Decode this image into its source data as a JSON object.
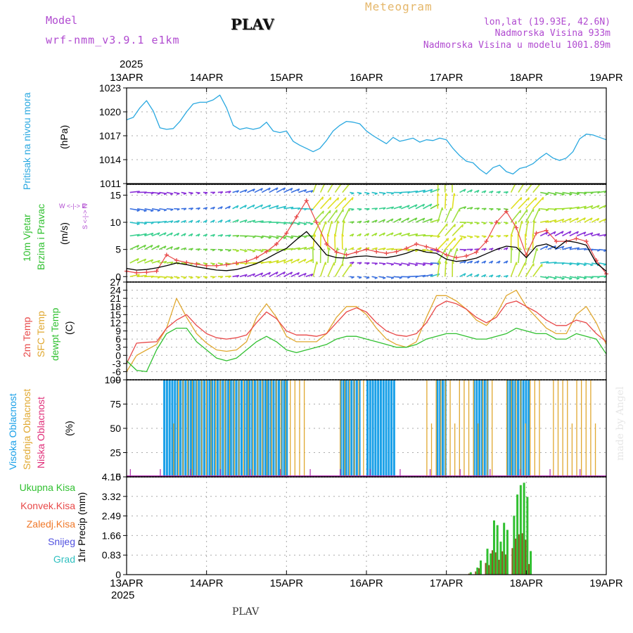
{
  "header": {
    "model_label": "Model",
    "model_name": "wrf-nmm_v3.9.1 e1km",
    "station": "PLAV",
    "product": "Meteogram",
    "lonlat": "lon,lat (19.93E, 42.6N)",
    "elevation": "Nadmorska Visina 933m",
    "model_elevation": "Nadmorska Visina u modelu 1001.89m",
    "year_top": "2025",
    "year_bottom": "2025",
    "footer_station": "PLAV",
    "watermark": "made by Angel"
  },
  "colors": {
    "pressure": "#29a8e0",
    "temp2m": "#e84848",
    "sfc": "#e0a830",
    "dewpt": "#30c030",
    "cloud_high": "#1aa0e8",
    "cloud_mid": "#e0a830",
    "cloud_low": "#b030b0",
    "precip_total": "#30c030",
    "precip_conv": "#e84848",
    "precip_frz": "#f07828",
    "precip_snow": "#5050e0",
    "precip_grad": "#30c0c0",
    "wind_speed": "#000000",
    "gust": "#e84848"
  },
  "axis_labels": {
    "pressure": "Pritisak na nivou mora",
    "pressure_unit": "(hPa)",
    "wind1": "10m Vjetar",
    "wind2": "Brzina i Pravac",
    "wind_unit": "(m/s)",
    "wind_compass": "W <-|-> E",
    "wind_compass2": "S <-|-> N",
    "temp1": "2m Temp",
    "temp2": "SFC Temp",
    "temp3": "dewpt Temp",
    "temp_unit": "(C)",
    "cloud1": "Visoka Oblacnost",
    "cloud2": "Srednja Oblacnost",
    "cloud3": "Niska Oblacnost",
    "cloud_unit": "(%)",
    "precip_unit": "1hr Precip (mm)",
    "legend_total": "Ukupna Kisa",
    "legend_conv": "Konvek.Kisa",
    "legend_frz": "Zaledj.Kisa",
    "legend_snow": "Snijeg",
    "legend_grad": "Grad"
  },
  "chart_data": {
    "type": "line",
    "x_ticks": [
      "13APR",
      "14APR",
      "15APR",
      "16APR",
      "17APR",
      "18APR",
      "19APR"
    ],
    "x_range_hours": [
      0,
      144
    ],
    "panels": {
      "pressure": {
        "ylim": [
          1011,
          1023
        ],
        "ticks": [
          "1023",
          "1020",
          "1017",
          "1014",
          "1011"
        ],
        "x_hours": [
          0,
          2,
          4,
          6,
          8,
          10,
          12,
          14,
          16,
          18,
          20,
          22,
          24,
          26,
          28,
          30,
          32,
          34,
          36,
          38,
          40,
          42,
          44,
          46,
          48,
          50,
          52,
          54,
          56,
          58,
          60,
          62,
          64,
          66,
          68,
          70,
          72,
          74,
          76,
          78,
          80,
          82,
          84,
          86,
          88,
          90,
          92,
          94,
          96,
          98,
          100,
          102,
          104,
          106,
          108,
          110,
          112,
          114,
          116,
          118,
          120,
          122,
          124,
          126,
          128,
          130,
          132,
          134,
          136,
          138,
          140,
          142,
          144
        ],
        "values": [
          1019,
          1019.3,
          1020.5,
          1021.4,
          1020.1,
          1018,
          1017.8,
          1017.9,
          1018.8,
          1020,
          1021,
          1021.2,
          1021.2,
          1021.5,
          1022.1,
          1020.5,
          1018.3,
          1017.8,
          1018,
          1017.8,
          1018,
          1018.7,
          1017.6,
          1017.4,
          1017.6,
          1016.3,
          1015.8,
          1015.4,
          1015,
          1015.4,
          1016.4,
          1017.6,
          1018.3,
          1018.8,
          1018.7,
          1018.5,
          1017.6,
          1017,
          1016.5,
          1016,
          1016.8,
          1016.3,
          1016.5,
          1016.7,
          1016.2,
          1016.5,
          1016.4,
          1016.7,
          1016.5,
          1015.4,
          1014.5,
          1013.8,
          1013.6,
          1012.8,
          1012.2,
          1013,
          1013.3,
          1012.5,
          1012.2,
          1012.9,
          1013.1,
          1013.5,
          1014.2,
          1014.8,
          1014.2,
          1013.9,
          1014.2,
          1015,
          1016.6,
          1017.2,
          1017.1,
          1016.8,
          1016.5
        ]
      },
      "wind": {
        "ylim": [
          -1,
          17
        ],
        "ticks": [
          "15",
          "10",
          "5",
          "0"
        ],
        "x_hours": [
          0,
          3,
          6,
          9,
          12,
          15,
          18,
          21,
          24,
          27,
          30,
          33,
          36,
          39,
          42,
          45,
          48,
          51,
          54,
          57,
          60,
          63,
          66,
          69,
          72,
          75,
          78,
          81,
          84,
          87,
          90,
          93,
          96,
          99,
          102,
          105,
          108,
          111,
          114,
          117,
          120,
          123,
          126,
          129,
          132,
          135,
          138,
          141,
          144
        ],
        "speed": [
          1.5,
          1.2,
          1.3,
          1.6,
          2,
          2.5,
          2.2,
          1.8,
          1.5,
          1.2,
          1.1,
          1.3,
          1.8,
          2.4,
          3.3,
          4.3,
          5.2,
          6.8,
          8.3,
          6.2,
          4,
          3.5,
          3.4,
          3.7,
          3.8,
          3.6,
          3.5,
          3.8,
          4.3,
          5,
          4.5,
          4.3,
          3.2,
          2.8,
          3,
          3.4,
          4.2,
          5,
          5.6,
          5.4,
          3.5,
          5.6,
          6,
          5.2,
          6.6,
          6.3,
          5.8,
          2.5,
          1
        ],
        "gust": [
          1,
          0.7,
          0.8,
          1,
          4,
          3,
          2.6,
          2.3,
          2,
          2,
          2.2,
          2.5,
          2.8,
          3.5,
          4.6,
          6,
          8,
          11,
          14,
          10,
          6,
          4.5,
          4,
          4.5,
          5,
          4.6,
          4.3,
          4.6,
          5.2,
          6,
          5.5,
          5,
          4,
          3.5,
          3.8,
          4.5,
          6.5,
          10,
          12,
          9,
          4,
          8,
          8.5,
          6.5,
          6.5,
          7,
          6.5,
          3,
          0.5
        ]
      },
      "temperature": {
        "ylim": [
          -9,
          27
        ],
        "ticks": [
          "27",
          "24",
          "21",
          "18",
          "15",
          "12",
          "9",
          "6",
          "3",
          "0",
          "-3",
          "-6",
          "-9"
        ],
        "x_hours": [
          0,
          3,
          6,
          9,
          12,
          15,
          18,
          21,
          24,
          27,
          30,
          33,
          36,
          39,
          42,
          45,
          48,
          51,
          54,
          57,
          60,
          63,
          66,
          69,
          72,
          75,
          78,
          81,
          84,
          87,
          90,
          93,
          96,
          99,
          102,
          105,
          108,
          111,
          114,
          117,
          120,
          123,
          126,
          129,
          132,
          135,
          138,
          141,
          144
        ],
        "t2m": [
          -3,
          4.5,
          4.8,
          5,
          10,
          13,
          15,
          11,
          8,
          6.5,
          6,
          6.5,
          7.5,
          12,
          16,
          13.5,
          9,
          7.5,
          7.5,
          7,
          8,
          12,
          16,
          17.5,
          16,
          12,
          9,
          7.5,
          7,
          8,
          12,
          18,
          20,
          19,
          17,
          14,
          12,
          14,
          19,
          20,
          18,
          16,
          13,
          11,
          11,
          13,
          12,
          8,
          5
        ],
        "sfc": [
          -6,
          0,
          2,
          4,
          10,
          21,
          14,
          8,
          4.5,
          2,
          1.5,
          2,
          5,
          14,
          19,
          14,
          7,
          5,
          5,
          5,
          8,
          14,
          18,
          18,
          15,
          10,
          6,
          4,
          3,
          5,
          14,
          22,
          22,
          20,
          17,
          13,
          11,
          15,
          22,
          24,
          18,
          14,
          10,
          8,
          8,
          15,
          18,
          12,
          4
        ],
        "dewpt": [
          -2,
          -5.5,
          -6,
          2,
          8,
          10,
          10,
          5,
          2,
          -1,
          -2,
          -1,
          2,
          5,
          7,
          5,
          2,
          1,
          2,
          3,
          4,
          6,
          7,
          7,
          6,
          5,
          4,
          3,
          3,
          4,
          6,
          7,
          8,
          8,
          7,
          6,
          6,
          7,
          8,
          10,
          9,
          8,
          8,
          6,
          6,
          8,
          7,
          6,
          0.5
        ]
      },
      "clouds": {
        "ylim": [
          0,
          100
        ],
        "ticks": [
          "100",
          "75",
          "50",
          "25",
          "0"
        ]
      },
      "precip": {
        "ylim": [
          0,
          4.15
        ],
        "ticks": [
          "4.15",
          "3.32",
          "2.49",
          "1.66",
          "0.83",
          "0"
        ],
        "x_hours": [
          103,
          105,
          106,
          108,
          109,
          110,
          111,
          112,
          113,
          114,
          116,
          117,
          118,
          119,
          120,
          121
        ],
        "total": [
          0.1,
          0.3,
          0.6,
          1.1,
          0.9,
          2.3,
          2.1,
          1.4,
          2.2,
          1.9,
          2.5,
          3.4,
          3.8,
          3.9,
          3.3,
          1
        ]
      }
    }
  }
}
